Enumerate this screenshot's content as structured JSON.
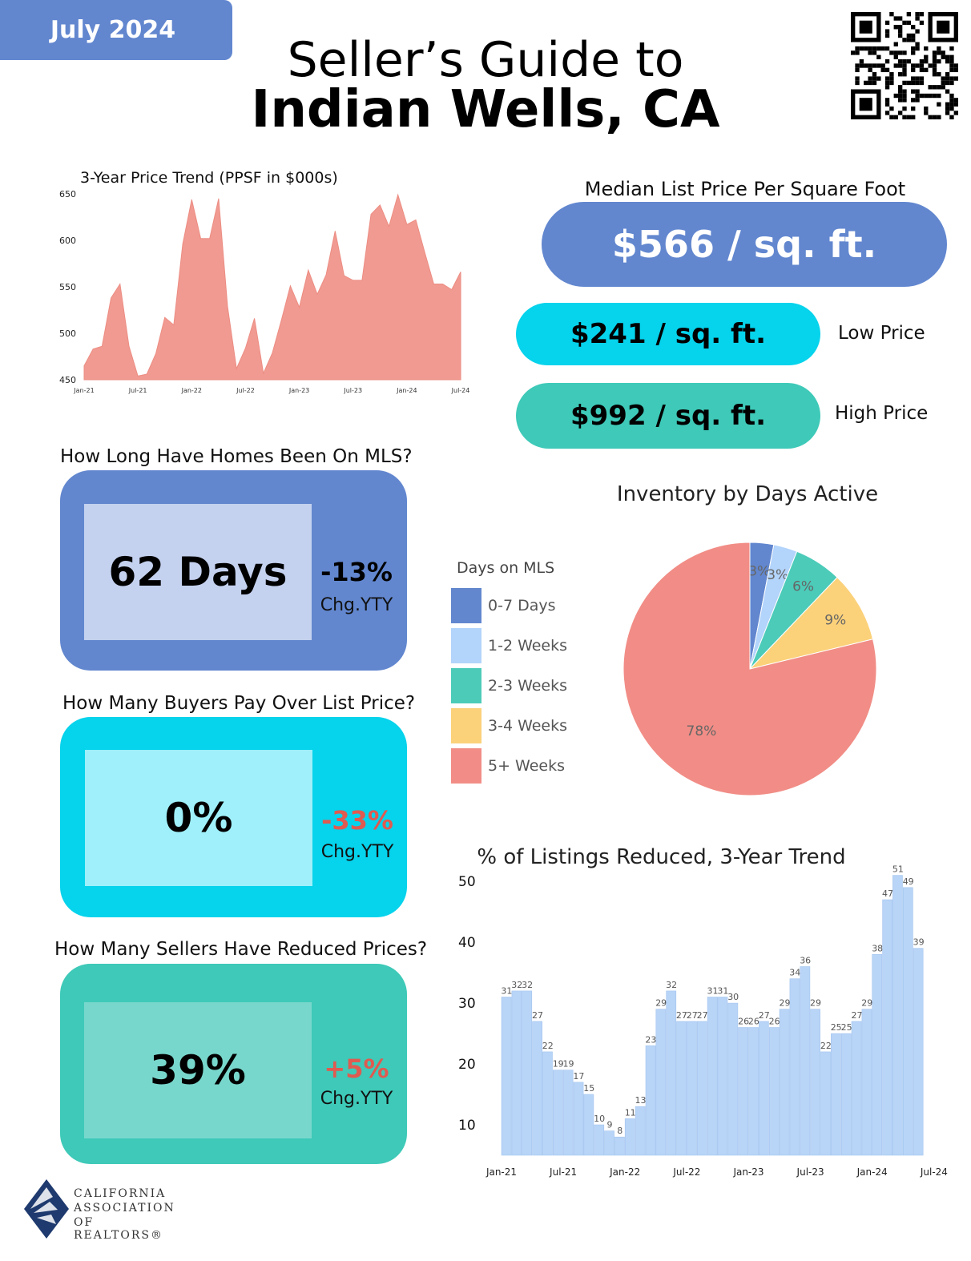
{
  "header": {
    "date": "July 2024",
    "title_line1": "Seller’s Guide to",
    "title_line2": "Indian Wells, CA"
  },
  "colors": {
    "blue": "#6287cf",
    "cyan": "#06d3ec",
    "teal": "#3ec9b8",
    "light_blue": "#b9ccef",
    "light_cyan": "#9ff0fa",
    "light_teal": "#78d7cc",
    "salmon": "#f19a91",
    "bar": "#b8d4f7",
    "negative": "#e05a50"
  },
  "price_per_sqft": {
    "label": "Median List Price Per Square Foot",
    "median": "$566 / sq. ft.",
    "low": "$241 / sq. ft.",
    "low_label": "Low Price",
    "high": "$992 / sq. ft.",
    "high_label": "High Price"
  },
  "days_on_mls": {
    "question": "How Long Have Homes Been On MLS?",
    "value": "62 Days",
    "change": "-13%",
    "change_label": "Chg.YTY"
  },
  "over_list": {
    "question": "How Many Buyers Pay Over List Price?",
    "value": "0%",
    "change": "-33%",
    "change_label": "Chg.YTY"
  },
  "reduced": {
    "question": "How Many Sellers Have Reduced Prices?",
    "value": "39%",
    "change": "+5%",
    "change_label": "Chg.YTY"
  },
  "chart_data": [
    {
      "type": "area",
      "title": "3-Year Price Trend (PPSF in $000s)",
      "ylim": [
        450,
        650
      ],
      "yticks": [
        450,
        500,
        550,
        600,
        650
      ],
      "xtick_labels": [
        "Jan-21",
        "Jul-21",
        "Jan-22",
        "Jul-22",
        "Jan-23",
        "Jul-23",
        "Jan-24",
        "Jul-24"
      ],
      "color": "#f19a91",
      "values": [
        465,
        483,
        486,
        538,
        553,
        486,
        454,
        456,
        478,
        517,
        509,
        596,
        644,
        602,
        602,
        645,
        529,
        462,
        484,
        516,
        457,
        479,
        514,
        551,
        528,
        568,
        542,
        563,
        610,
        562,
        557,
        557,
        628,
        638,
        615,
        649,
        617,
        622,
        587,
        553,
        553,
        547,
        566
      ]
    },
    {
      "type": "pie",
      "title": "Inventory by Days Active",
      "legend_title": "Days on MLS",
      "labels": [
        "0-7 Days",
        "1-2 Weeks",
        "2-3 Weeks",
        "3-4 Weeks",
        "5+ Weeks"
      ],
      "values": [
        3,
        3,
        6,
        9,
        78
      ],
      "value_labels": [
        "3%",
        "3%",
        "6%",
        "9%",
        "78%"
      ],
      "colors": [
        "#6287cf",
        "#b3d4fb",
        "#4ccbb9",
        "#fbd17a",
        "#f18d86"
      ]
    },
    {
      "type": "bar",
      "title": "% of Listings Reduced, 3-Year Trend",
      "ylim": [
        5,
        52
      ],
      "yticks": [
        10,
        20,
        30,
        40,
        50
      ],
      "xtick_labels": [
        "Jan-21",
        "Jul-21",
        "Jan-22",
        "Jul-22",
        "Jan-23",
        "Jul-23",
        "Jan-24",
        "Jul-24"
      ],
      "values": [
        31,
        32,
        32,
        27,
        22,
        19,
        19,
        17,
        15,
        10,
        9,
        8,
        11,
        13,
        23,
        29,
        32,
        27,
        27,
        27,
        31,
        31,
        30,
        26,
        26,
        27,
        26,
        29,
        34,
        36,
        29,
        22,
        25,
        25,
        27,
        29,
        38,
        47,
        51,
        49,
        39
      ]
    }
  ],
  "footer": {
    "org_line1": "CALIFORNIA",
    "org_line2": "ASSOCIATION",
    "org_line3": "OF REALTORS®"
  }
}
